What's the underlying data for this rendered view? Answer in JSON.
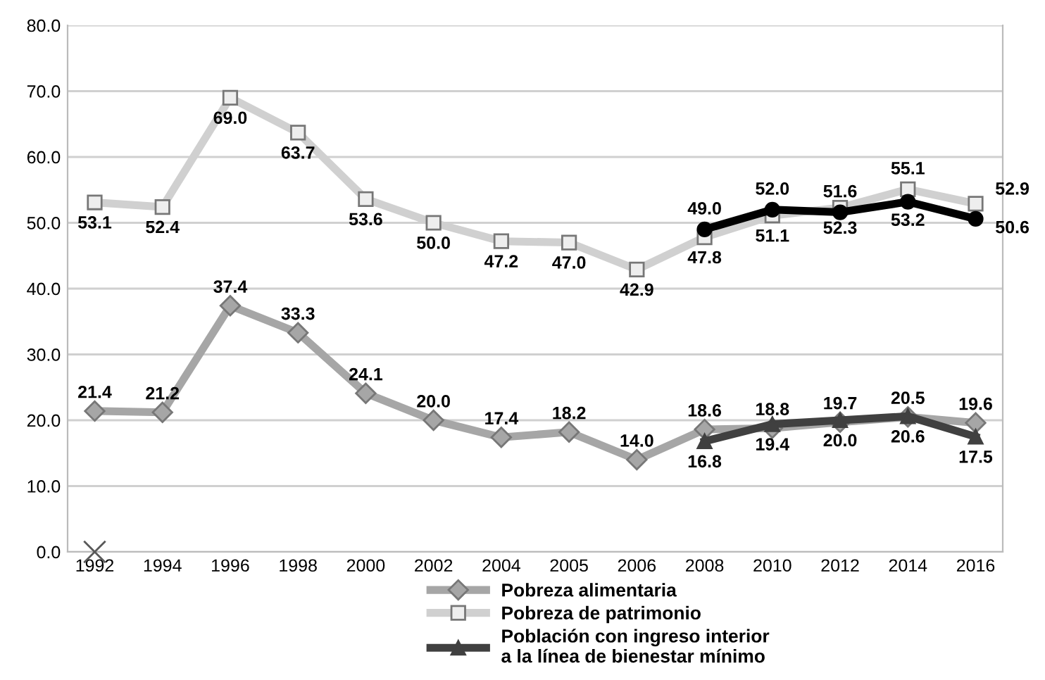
{
  "chart_data": {
    "type": "line",
    "categories": [
      "1992",
      "1994",
      "1996",
      "1998",
      "2000",
      "2002",
      "2004",
      "2005",
      "2006",
      "2008",
      "2010",
      "2012",
      "2014",
      "2016"
    ],
    "series": [
      {
        "name": "Pobreza alimentaria",
        "color": "#a6a6a6",
        "marker": "diamond",
        "values": [
          21.4,
          21.2,
          37.4,
          33.3,
          24.1,
          20.0,
          17.4,
          18.2,
          14.0,
          18.6,
          18.8,
          19.7,
          20.5,
          19.6
        ],
        "value_labels": [
          "21.4",
          "21.2",
          "37.4",
          "33.3",
          "24.1",
          "20.0",
          "17.4",
          "18.2",
          "14.0",
          "18.6",
          "18.8",
          "19.7",
          "20.5",
          "19.6"
        ]
      },
      {
        "name": "Pobreza de patrimonio",
        "color": "#d0d0d0",
        "marker": "square",
        "values": [
          53.1,
          52.4,
          69.0,
          63.7,
          53.6,
          50.0,
          47.2,
          47.0,
          42.9,
          47.8,
          51.1,
          52.3,
          55.1,
          52.9
        ],
        "value_labels": [
          "53.1",
          "52.4",
          "69.0",
          "63.7",
          "53.6",
          "50.0",
          "47.2",
          "47.0",
          "42.9",
          "47.8",
          "51.1",
          "52.3",
          "55.1",
          "52.9"
        ]
      },
      {
        "name": "Población con ingreso interior\na la línea de bienestar mínimo",
        "color": "#404040",
        "marker": "triangle",
        "values": [
          null,
          null,
          null,
          null,
          null,
          null,
          null,
          null,
          null,
          16.8,
          19.4,
          20.0,
          20.6,
          17.5
        ],
        "value_labels": [
          null,
          null,
          null,
          null,
          null,
          null,
          null,
          null,
          null,
          "16.8",
          "19.4",
          "20.0",
          "20.6",
          "17.5"
        ]
      },
      {
        "color": "#000000",
        "marker": "circle",
        "values": [
          null,
          null,
          null,
          null,
          null,
          null,
          null,
          null,
          null,
          49.0,
          52.0,
          51.6,
          53.2,
          50.6
        ],
        "value_labels": [
          null,
          null,
          null,
          null,
          null,
          null,
          null,
          null,
          null,
          "49.0",
          "52.0",
          "51.6",
          "53.2",
          "50.6"
        ]
      },
      {
        "type": "scatter",
        "color": "#595959",
        "marker": "cross",
        "values": [
          0.0,
          null,
          null,
          null,
          null,
          null,
          null,
          null,
          null,
          null,
          null,
          null,
          null,
          null
        ]
      }
    ],
    "ylim": [
      0,
      80
    ],
    "yticks": [
      {
        "value": 0,
        "label": "0.0"
      },
      {
        "value": 10,
        "label": "10.0"
      },
      {
        "value": 20,
        "label": "20.0"
      },
      {
        "value": 30,
        "label": "30.0"
      },
      {
        "value": 40,
        "label": "40.0"
      },
      {
        "value": 50,
        "label": "50.0"
      },
      {
        "value": 60,
        "label": "60.0"
      },
      {
        "value": 70,
        "label": "70.0"
      },
      {
        "value": 80,
        "label": "80.0"
      }
    ],
    "grid": "y",
    "legend": "bottom"
  }
}
